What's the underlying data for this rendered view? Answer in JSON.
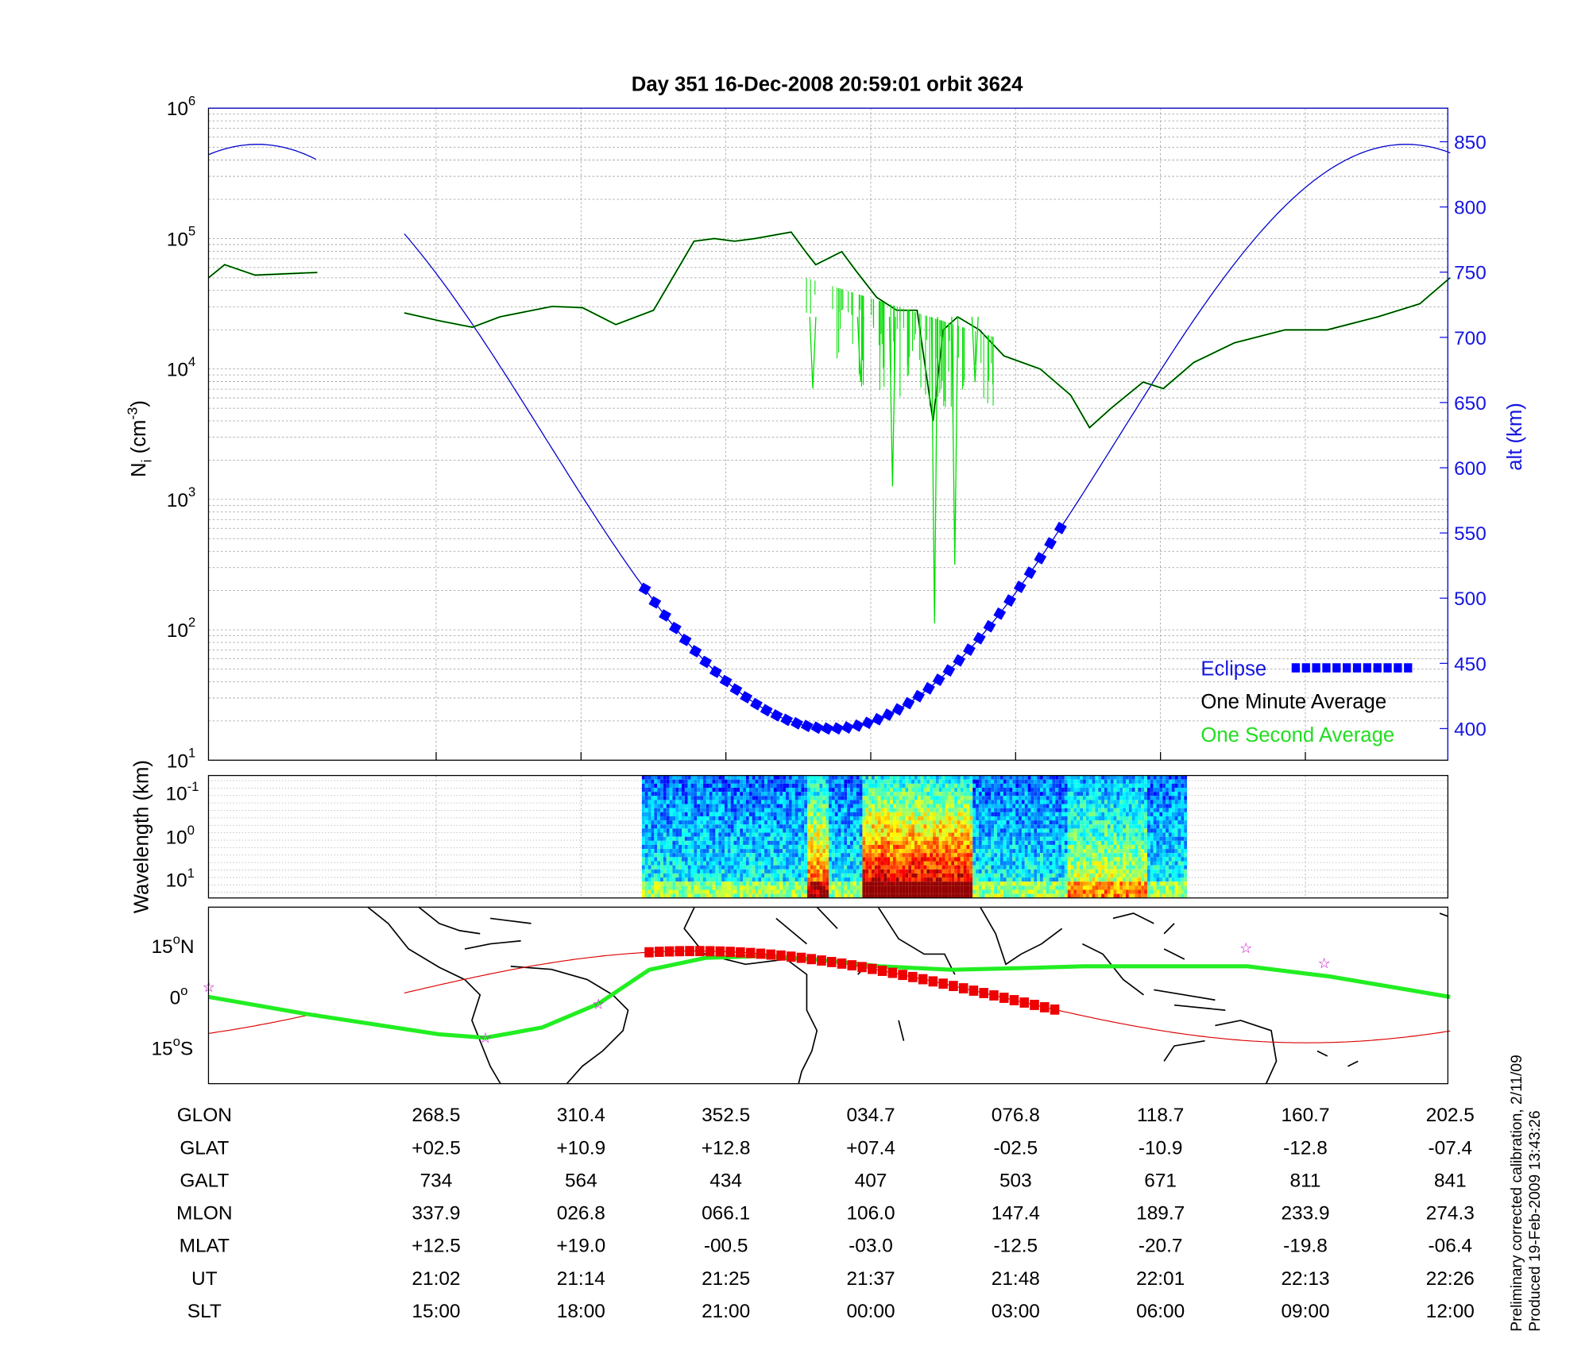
{
  "title": "Day 351  16-Dec-2008 20:59:01   orbit 3624",
  "colors": {
    "density_second": "#00dd00",
    "density_minute": "#000000",
    "altitude": "#0000cc",
    "eclipse": "#0000ff",
    "track": "#dd0000",
    "footprint": "#22ee22",
    "stars": "#cc00cc"
  },
  "chart_data": [
    {
      "type": "line",
      "name": "ion-density",
      "ylabel": "N_i (cm^-3)",
      "ylabel_main": "N",
      "ylabel_sub": "i",
      "ylabel_unit_pre": " (cm",
      "ylabel_unit_exp": "-3",
      "ylabel_unit_post": ")",
      "yscale": "log",
      "ylim": [
        10,
        1000000
      ],
      "yticks": [
        {
          "base": "10",
          "exp": "1",
          "v": 1
        },
        {
          "base": "10",
          "exp": "2",
          "v": 2
        },
        {
          "base": "10",
          "exp": "3",
          "v": 3
        },
        {
          "base": "10",
          "exp": "4",
          "v": 4
        },
        {
          "base": "10",
          "exp": "5",
          "v": 5
        },
        {
          "base": "10",
          "exp": "6",
          "v": 6
        }
      ],
      "x_units": "orbit tick index (ticks 0..7 = table columns)",
      "xlim": [
        -1.57,
        7.0
      ],
      "grid": true,
      "one_minute_average_log10": [
        [
          [
            -1.57,
            4.7
          ],
          [
            -1.46,
            4.8
          ],
          [
            -1.25,
            4.72
          ],
          [
            -0.82,
            4.74
          ]
        ],
        [
          [
            -0.22,
            4.43
          ],
          [
            0.02,
            4.37
          ],
          [
            0.25,
            4.32
          ],
          [
            0.44,
            4.4
          ],
          [
            0.8,
            4.48
          ],
          [
            1.01,
            4.47
          ],
          [
            1.24,
            4.34
          ],
          [
            1.5,
            4.45
          ],
          [
            1.78,
            4.98
          ],
          [
            1.92,
            5.0
          ],
          [
            2.06,
            4.98
          ],
          [
            2.2,
            5.0
          ],
          [
            2.45,
            5.05
          ],
          [
            2.55,
            4.9
          ],
          [
            2.62,
            4.8
          ],
          [
            2.8,
            4.9
          ],
          [
            2.9,
            4.75
          ],
          [
            3.04,
            4.55
          ],
          [
            3.18,
            4.45
          ],
          [
            3.32,
            4.45
          ],
          [
            3.43,
            3.6
          ],
          [
            3.5,
            4.3
          ],
          [
            3.6,
            4.4
          ],
          [
            3.75,
            4.3
          ],
          [
            3.92,
            4.1
          ],
          [
            4.17,
            4.0
          ],
          [
            4.38,
            3.8
          ],
          [
            4.51,
            3.55
          ],
          [
            4.66,
            3.7
          ],
          [
            4.88,
            3.9
          ],
          [
            5.02,
            3.85
          ],
          [
            5.23,
            4.05
          ],
          [
            5.51,
            4.2
          ],
          [
            5.86,
            4.3
          ],
          [
            6.15,
            4.3
          ],
          [
            6.5,
            4.4
          ],
          [
            6.79,
            4.5
          ],
          [
            7.0,
            4.7
          ]
        ]
      ],
      "one_second_spikes_log10": [
        [
          2.6,
          3.85
        ],
        [
          2.93,
          3.9
        ],
        [
          3.15,
          3.1
        ],
        [
          3.44,
          2.05
        ],
        [
          3.58,
          2.5
        ],
        [
          3.72,
          3.9
        ]
      ],
      "legend": {
        "placement": "bottom-right",
        "items": [
          "Eclipse",
          "One Minute Average",
          "One Second Average"
        ]
      }
    },
    {
      "type": "line",
      "name": "altitude",
      "ylabel": "alt (km)",
      "ylim": [
        375,
        875
      ],
      "yticks": [
        "400",
        "450",
        "500",
        "550",
        "600",
        "650",
        "700",
        "750",
        "800",
        "850"
      ],
      "model": "alt = 624 - 224*cos(2*pi*(x-2.73)/7.93)",
      "gap_x": [
        -0.82,
        -0.22
      ],
      "eclipse_x": [
        1.44,
        4.33
      ]
    },
    {
      "type": "heatmap",
      "name": "wavelength-spectrogram",
      "ylabel": "Wavelength (km)",
      "yticks": [
        {
          "base": "10",
          "exp": "-1"
        },
        {
          "base": "10",
          "exp": "0"
        },
        {
          "base": "10",
          "exp": "1"
        }
      ],
      "data_x": [
        1.42,
        5.18
      ],
      "active_bands_x": [
        [
          2.55,
          2.7
        ],
        [
          2.93,
          3.7
        ],
        [
          4.35,
          4.9
        ]
      ]
    },
    {
      "type": "scatter",
      "name": "ground-track-map",
      "yticks": [
        {
          "n": "15",
          "s": "N",
          "v": 15
        },
        {
          "n": "0",
          "s": "",
          "v": 0
        },
        {
          "n": "15",
          "s": "S",
          "v": -15
        }
      ],
      "ylim": [
        -26,
        26
      ],
      "footprint": [
        [
          -1.57,
          0
        ],
        [
          -0.9,
          -5
        ],
        [
          0.02,
          -11
        ],
        [
          0.34,
          -12
        ],
        [
          0.73,
          -9
        ],
        [
          1.12,
          -2
        ],
        [
          1.47,
          8
        ],
        [
          1.86,
          11.5
        ],
        [
          2.22,
          12
        ],
        [
          2.64,
          11
        ],
        [
          3.06,
          9
        ],
        [
          3.56,
          8
        ],
        [
          4.05,
          8.5
        ],
        [
          4.47,
          9
        ],
        [
          5.6,
          9
        ],
        [
          6.17,
          6
        ],
        [
          7.0,
          0
        ]
      ],
      "stars": [
        [
          -1.57,
          3
        ],
        [
          0.34,
          -12
        ],
        [
          1.12,
          -2
        ],
        [
          5.59,
          14.5
        ],
        [
          6.13,
          10
        ]
      ],
      "track_amplitude_deg": 13.5,
      "eclipse_x": [
        1.47,
        4.33
      ]
    }
  ],
  "table": {
    "rows": [
      {
        "label": "GLON",
        "values": [
          "268.5",
          "310.4",
          "352.5",
          "034.7",
          "076.8",
          "118.7",
          "160.7",
          "202.5"
        ]
      },
      {
        "label": "GLAT",
        "values": [
          "+02.5",
          "+10.9",
          "+12.8",
          "+07.4",
          "-02.5",
          "-10.9",
          "-12.8",
          "-07.4"
        ]
      },
      {
        "label": "GALT",
        "values": [
          "734",
          "564",
          "434",
          "407",
          "503",
          "671",
          "811",
          "841"
        ]
      },
      {
        "label": "MLON",
        "values": [
          "337.9",
          "026.8",
          "066.1",
          "106.0",
          "147.4",
          "189.7",
          "233.9",
          "274.3"
        ]
      },
      {
        "label": "MLAT",
        "values": [
          "+12.5",
          "+19.0",
          "-00.5",
          "-03.0",
          "-12.5",
          "-20.7",
          "-19.8",
          "-06.4"
        ]
      },
      {
        "label": "UT",
        "values": [
          "21:02",
          "21:14",
          "21:25",
          "21:37",
          "21:48",
          "22:01",
          "22:13",
          "22:26"
        ]
      },
      {
        "label": "SLT",
        "values": [
          "15:00",
          "18:00",
          "21:00",
          "00:00",
          "03:00",
          "06:00",
          "09:00",
          "12:00"
        ]
      }
    ]
  },
  "footer": {
    "line1": "Preliminary corrected calibration, 2/11/09",
    "line2": "Produced 19-Feb-2009 13:43:26"
  }
}
